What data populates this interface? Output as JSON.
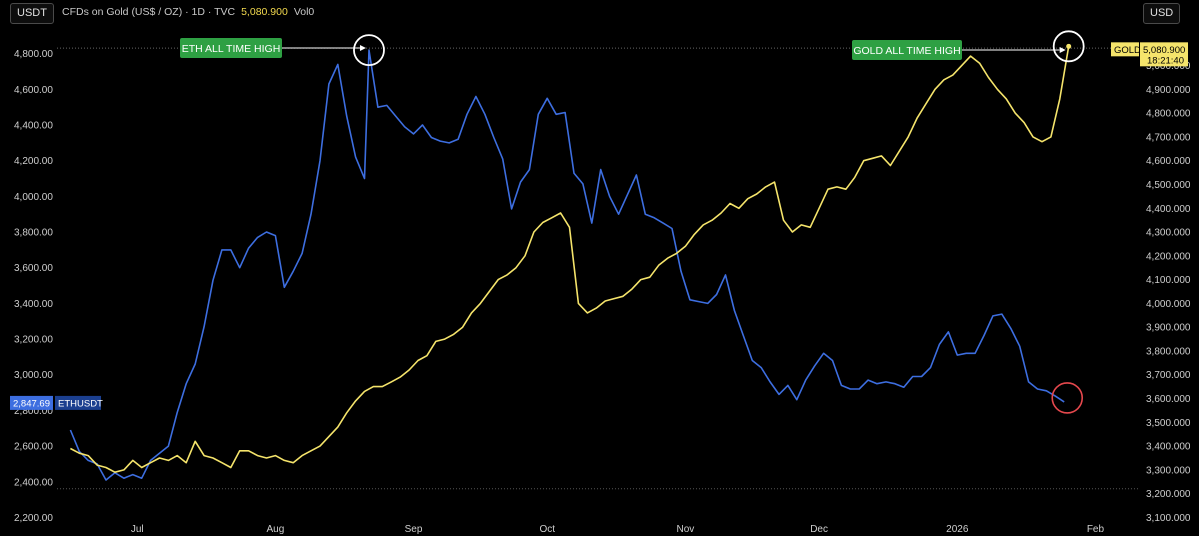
{
  "toolbar": {
    "left_currency": "USDT",
    "right_currency": "USD"
  },
  "header": {
    "title": "CFDs on Gold (US$ / OZ) · 1D · TVC",
    "value": "5,080.900",
    "volume": "Vol0"
  },
  "badges": {
    "eth": {
      "price": "2,847.69",
      "symbol": "ETHUSDT"
    },
    "gold": {
      "symbol": "GOLD",
      "price": "5,080.900",
      "timer": "18:21:40"
    }
  },
  "annotations": {
    "eth_ath": "ETH ALL TIME HIGH",
    "gold_ath": "GOLD ALL TIME HIGH"
  },
  "colors": {
    "eth": "#3d6ee0",
    "gold": "#f5e46b",
    "callout_bg": "#2ea043",
    "circle": "#ffffff",
    "marker": "#e5484d",
    "gold_badge": "#f5e46b",
    "eth_badge": "#3d6ee0"
  },
  "chart_data": {
    "type": "line",
    "x_ticks": [
      "Jul",
      "Aug",
      "Sep",
      "Oct",
      "Nov",
      "Dec",
      "2026",
      "Feb"
    ],
    "left_axis": {
      "unit": "ETHUSDT",
      "ticks": [
        "2,200.00",
        "2,400.00",
        "2,600.00",
        "2,800.00",
        "3,000.00",
        "3,200.00",
        "3,400.00",
        "3,600.00",
        "3,800.00",
        "4,000.00",
        "4,200.00",
        "4,400.00",
        "4,600.00",
        "4,800.00"
      ],
      "ylim": [
        2180,
        5000
      ]
    },
    "right_axis": {
      "unit": "GOLD",
      "ticks": [
        "3,100.000",
        "3,200.000",
        "3,300.000",
        "3,400.000",
        "3,500.000",
        "3,600.000",
        "3,700.000",
        "3,800.000",
        "3,900.000",
        "4,000.000",
        "4,100.000",
        "4,200.000",
        "4,300.000",
        "4,400.000",
        "4,500.000",
        "4,600.000",
        "4,700.000",
        "4,800.000",
        "4,900.000",
        "5,000.000"
      ],
      "ylim": [
        3085,
        5200
      ]
    },
    "series": [
      {
        "name": "ETHUSDT",
        "axis": "left",
        "x": [
          "2025-06-16",
          "2025-06-18",
          "2025-06-20",
          "2025-06-22",
          "2025-06-24",
          "2025-06-26",
          "2025-06-28",
          "2025-06-30",
          "2025-07-02",
          "2025-07-04",
          "2025-07-06",
          "2025-07-08",
          "2025-07-10",
          "2025-07-12",
          "2025-07-14",
          "2025-07-16",
          "2025-07-18",
          "2025-07-20",
          "2025-07-22",
          "2025-07-24",
          "2025-07-26",
          "2025-07-28",
          "2025-07-30",
          "2025-08-01",
          "2025-08-03",
          "2025-08-05",
          "2025-08-07",
          "2025-08-09",
          "2025-08-11",
          "2025-08-13",
          "2025-08-15",
          "2025-08-17",
          "2025-08-19",
          "2025-08-21",
          "2025-08-22",
          "2025-08-24",
          "2025-08-26",
          "2025-08-28",
          "2025-08-30",
          "2025-09-01",
          "2025-09-03",
          "2025-09-05",
          "2025-09-07",
          "2025-09-09",
          "2025-09-11",
          "2025-09-13",
          "2025-09-15",
          "2025-09-17",
          "2025-09-19",
          "2025-09-21",
          "2025-09-23",
          "2025-09-25",
          "2025-09-27",
          "2025-09-29",
          "2025-10-01",
          "2025-10-03",
          "2025-10-05",
          "2025-10-07",
          "2025-10-09",
          "2025-10-11",
          "2025-10-13",
          "2025-10-15",
          "2025-10-17",
          "2025-10-19",
          "2025-10-21",
          "2025-10-23",
          "2025-10-25",
          "2025-10-27",
          "2025-10-29",
          "2025-10-31",
          "2025-11-02",
          "2025-11-04",
          "2025-11-06",
          "2025-11-08",
          "2025-11-10",
          "2025-11-12",
          "2025-11-14",
          "2025-11-16",
          "2025-11-18",
          "2025-11-20",
          "2025-11-22",
          "2025-11-24",
          "2025-11-26",
          "2025-11-28",
          "2025-11-30",
          "2025-12-02",
          "2025-12-04",
          "2025-12-06",
          "2025-12-08",
          "2025-12-10",
          "2025-12-12",
          "2025-12-14",
          "2025-12-16",
          "2025-12-18",
          "2025-12-20",
          "2025-12-22",
          "2025-12-24",
          "2025-12-26",
          "2025-12-28",
          "2025-12-30",
          "2026-01-01",
          "2026-01-03",
          "2026-01-05",
          "2026-01-07",
          "2026-01-09",
          "2026-01-11",
          "2026-01-13",
          "2026-01-15",
          "2026-01-17",
          "2026-01-19",
          "2026-01-21",
          "2026-01-23",
          "2026-01-25"
        ],
        "values": [
          2690,
          2570,
          2520,
          2500,
          2410,
          2450,
          2420,
          2440,
          2420,
          2520,
          2560,
          2600,
          2790,
          2950,
          3060,
          3270,
          3530,
          3700,
          3700,
          3600,
          3710,
          3770,
          3800,
          3780,
          3490,
          3580,
          3680,
          3900,
          4200,
          4630,
          4740,
          4450,
          4220,
          4100,
          4820,
          4500,
          4510,
          4450,
          4390,
          4350,
          4400,
          4330,
          4310,
          4300,
          4320,
          4460,
          4560,
          4460,
          4330,
          4210,
          3930,
          4080,
          4150,
          4460,
          4550,
          4460,
          4470,
          4130,
          4070,
          3850,
          4150,
          4000,
          3900,
          4010,
          4120,
          3900,
          3880,
          3850,
          3820,
          3580,
          3420,
          3410,
          3400,
          3450,
          3560,
          3360,
          3220,
          3080,
          3040,
          2960,
          2890,
          2940,
          2860,
          2970,
          3050,
          3120,
          3080,
          2940,
          2920,
          2920,
          2970,
          2950,
          2960,
          2950,
          2930,
          2990,
          2990,
          3040,
          3170,
          3240,
          3110,
          3120,
          3120,
          3220,
          3330,
          3340,
          3260,
          3160,
          2960,
          2920,
          2910,
          2880,
          2847.69
        ]
      },
      {
        "name": "GOLD",
        "axis": "right",
        "x": [
          "2025-06-16",
          "2025-06-18",
          "2025-06-20",
          "2025-06-22",
          "2025-06-24",
          "2025-06-26",
          "2025-06-28",
          "2025-06-30",
          "2025-07-02",
          "2025-07-04",
          "2025-07-06",
          "2025-07-08",
          "2025-07-10",
          "2025-07-12",
          "2025-07-14",
          "2025-07-16",
          "2025-07-18",
          "2025-07-20",
          "2025-07-22",
          "2025-07-24",
          "2025-07-26",
          "2025-07-28",
          "2025-07-30",
          "2025-08-01",
          "2025-08-03",
          "2025-08-05",
          "2025-08-07",
          "2025-08-09",
          "2025-08-11",
          "2025-08-13",
          "2025-08-15",
          "2025-08-17",
          "2025-08-19",
          "2025-08-21",
          "2025-08-23",
          "2025-08-25",
          "2025-08-27",
          "2025-08-29",
          "2025-08-31",
          "2025-09-02",
          "2025-09-04",
          "2025-09-06",
          "2025-09-08",
          "2025-09-10",
          "2025-09-12",
          "2025-09-14",
          "2025-09-16",
          "2025-09-18",
          "2025-09-20",
          "2025-09-22",
          "2025-09-24",
          "2025-09-26",
          "2025-09-28",
          "2025-09-30",
          "2025-10-02",
          "2025-10-04",
          "2025-10-06",
          "2025-10-08",
          "2025-10-10",
          "2025-10-12",
          "2025-10-14",
          "2025-10-16",
          "2025-10-18",
          "2025-10-20",
          "2025-10-22",
          "2025-10-24",
          "2025-10-26",
          "2025-10-28",
          "2025-10-30",
          "2025-11-01",
          "2025-11-03",
          "2025-11-05",
          "2025-11-07",
          "2025-11-09",
          "2025-11-11",
          "2025-11-13",
          "2025-11-15",
          "2025-11-17",
          "2025-11-19",
          "2025-11-21",
          "2025-11-23",
          "2025-11-25",
          "2025-11-27",
          "2025-11-29",
          "2025-12-01",
          "2025-12-03",
          "2025-12-05",
          "2025-12-07",
          "2025-12-09",
          "2025-12-11",
          "2025-12-13",
          "2025-12-15",
          "2025-12-17",
          "2025-12-19",
          "2025-12-21",
          "2025-12-23",
          "2025-12-25",
          "2025-12-27",
          "2025-12-29",
          "2025-12-31",
          "2026-01-02",
          "2026-01-04",
          "2026-01-06",
          "2026-01-08",
          "2026-01-10",
          "2026-01-12",
          "2026-01-14",
          "2026-01-16",
          "2026-01-18",
          "2026-01-20",
          "2026-01-22",
          "2026-01-24",
          "2026-01-26"
        ],
        "values": [
          3390,
          3370,
          3360,
          3320,
          3310,
          3290,
          3300,
          3340,
          3310,
          3330,
          3350,
          3340,
          3360,
          3330,
          3420,
          3360,
          3350,
          3330,
          3310,
          3380,
          3380,
          3360,
          3350,
          3360,
          3340,
          3330,
          3360,
          3380,
          3400,
          3440,
          3480,
          3540,
          3590,
          3630,
          3650,
          3650,
          3670,
          3690,
          3720,
          3760,
          3780,
          3840,
          3850,
          3870,
          3900,
          3960,
          4000,
          4050,
          4100,
          4120,
          4150,
          4200,
          4300,
          4340,
          4360,
          4380,
          4320,
          4000,
          3960,
          3980,
          4010,
          4020,
          4030,
          4060,
          4100,
          4110,
          4160,
          4190,
          4210,
          4240,
          4290,
          4330,
          4350,
          4380,
          4420,
          4400,
          4440,
          4460,
          4490,
          4510,
          4350,
          4300,
          4330,
          4320,
          4400,
          4480,
          4490,
          4480,
          4530,
          4600,
          4610,
          4620,
          4580,
          4640,
          4700,
          4780,
          4840,
          4900,
          4940,
          4960,
          5000,
          5040,
          5010,
          4950,
          4900,
          4860,
          4800,
          4760,
          4700,
          4680,
          4700,
          4860,
          5080.9
        ]
      }
    ]
  }
}
